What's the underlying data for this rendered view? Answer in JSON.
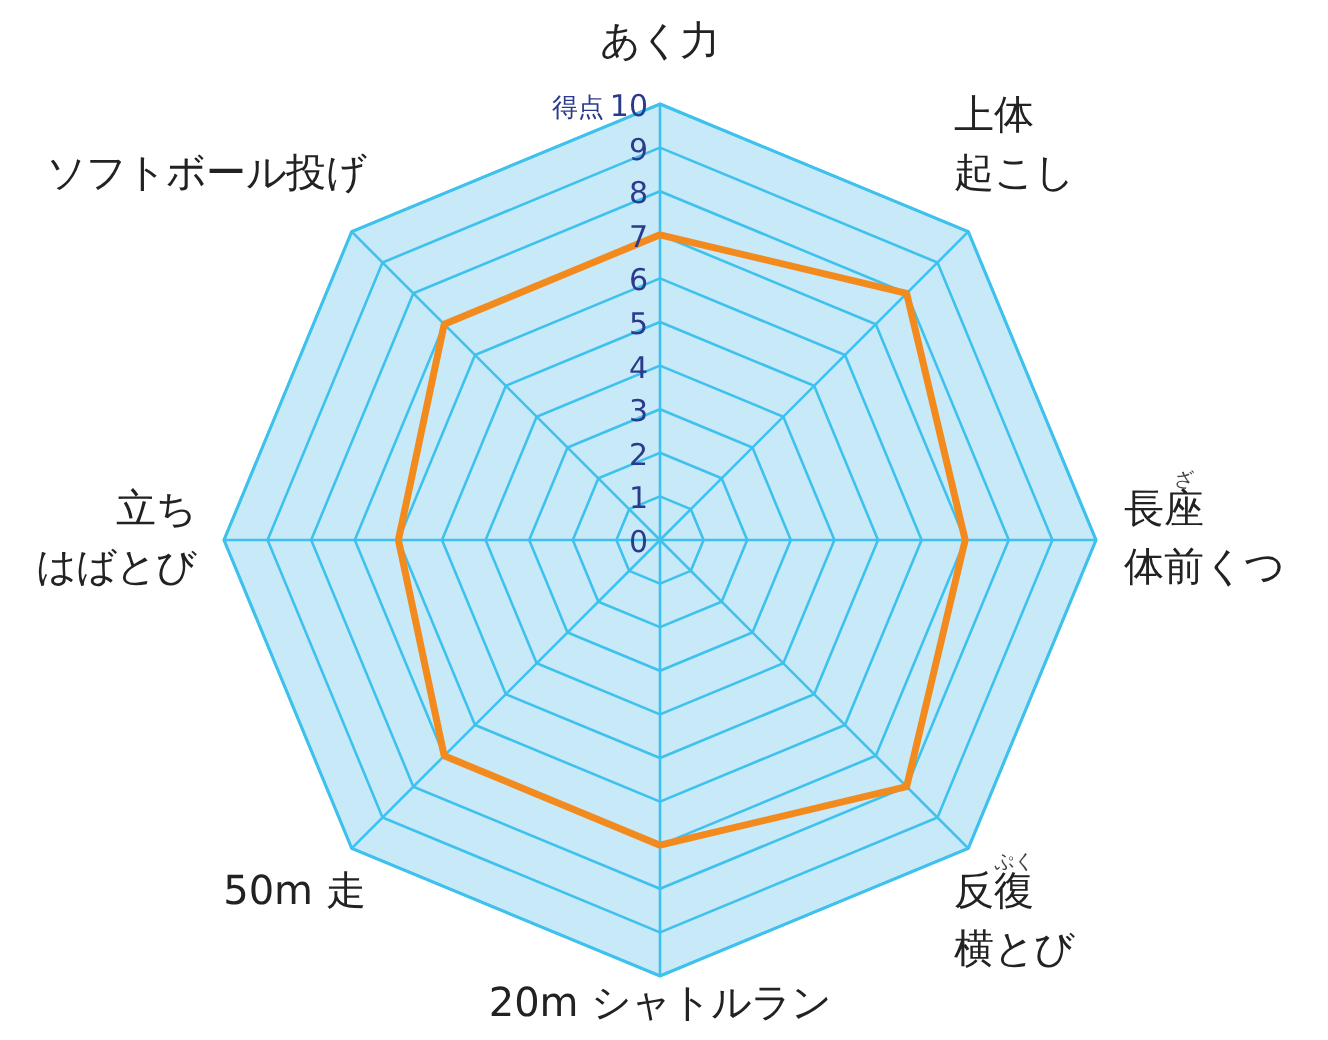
{
  "chart_data": {
    "type": "radar",
    "categories": [
      "あく力",
      "上体起こし",
      "長座体前くつ",
      "反復横とび",
      "20m シャトルラン",
      "50m 走",
      "立ちはばとび",
      "ソフトボール投げ"
    ],
    "series": [
      {
        "color": "#f28a1e",
        "values": [
          7,
          8,
          7,
          8,
          7,
          7,
          6,
          7
        ]
      }
    ],
    "ylim": [
      0,
      10
    ],
    "yticks": [
      0,
      1,
      2,
      3,
      4,
      5,
      6,
      7,
      8,
      9,
      10
    ],
    "ylabel": "得点",
    "grid": true,
    "marker": "none",
    "annotations": [
      {
        "text": "ざ",
        "x": "長座体前くつ"
      },
      {
        "text": "ぷく",
        "x": "反復横とび"
      }
    ]
  }
}
